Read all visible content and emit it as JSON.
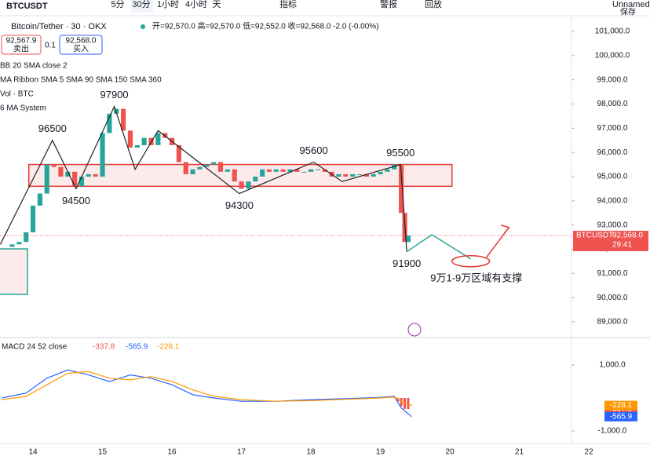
{
  "toolbar": {
    "symbol": "BTCUSDT",
    "intervals": [
      "5分",
      "30分",
      "1小时",
      "4小时",
      "天"
    ],
    "indicators": "指标",
    "alert": "警报",
    "replay": "回放",
    "layout": "Unnamed",
    "save": "保存"
  },
  "header": {
    "title": "Bitcoin/Tether · 30 · OKX",
    "ohlc": "开=92,570.0 高=92,570.0 低=92,552.0 收=92,568.0 -2.0 (-0.00%)",
    "sell_price": "92,567.9",
    "sell": "卖出",
    "spread": "0.1",
    "buy_price": "92,568.0",
    "buy": "买入",
    "studies": [
      "BB 20 SMA close 2",
      "MA Ribbon SMA 5 SMA 90 SMA 150 SMA 360",
      "Vol · BTC",
      "6 MA System"
    ]
  },
  "chart_data": [
    {
      "type": "candlestick",
      "xlim": [
        13.525,
        22.88
      ],
      "ylim": [
        88415,
        101584
      ],
      "yticks": [
        {
          "value": 101000,
          "label": "101,000.0"
        },
        {
          "value": 100000,
          "label": "100,000.0"
        },
        {
          "value": 99000,
          "label": "99,000.0"
        },
        {
          "value": 98000,
          "label": "98,000.0"
        },
        {
          "value": 97000,
          "label": "97,000.0"
        },
        {
          "value": 96000,
          "label": "96,000.0"
        },
        {
          "value": 95000,
          "label": "95,000.0"
        },
        {
          "value": 94000,
          "label": "94,000.0"
        },
        {
          "value": 93000,
          "label": "93,000.0"
        },
        {
          "value": 92000,
          "label": "92,000.0"
        },
        {
          "value": 91000,
          "label": "91,000.0"
        },
        {
          "value": 90000,
          "label": "90,000.0"
        },
        {
          "value": 89000,
          "label": "89,000.0"
        }
      ],
      "xticks": [
        14,
        15,
        16,
        17,
        18,
        19,
        20,
        21,
        22
      ],
      "x": [
        13.6,
        13.7,
        13.8,
        13.9,
        14.0,
        14.1,
        14.2,
        14.3,
        14.4,
        14.5,
        14.6,
        14.7,
        14.8,
        14.9,
        15.0,
        15.1,
        15.2,
        15.3,
        15.4,
        15.5,
        15.6,
        15.7,
        15.8,
        15.9,
        16.0,
        16.1,
        16.2,
        16.3,
        16.4,
        16.5,
        16.6,
        16.7,
        16.8,
        16.9,
        17.0,
        17.1,
        17.2,
        17.3,
        17.4,
        17.5,
        17.6,
        17.7,
        17.8,
        17.9,
        18.0,
        18.1,
        18.2,
        18.3,
        18.4,
        18.5,
        18.6,
        18.7,
        18.8,
        18.9,
        19.0,
        19.1,
        19.2,
        19.3,
        19.35,
        19.4
      ],
      "values": [
        92100,
        92200,
        92300,
        92700,
        93800,
        94300,
        95500,
        95400,
        95000,
        95200,
        94600,
        95000,
        95100,
        95000,
        96800,
        97600,
        97800,
        96900,
        96200,
        96300,
        96600,
        96300,
        96800,
        96600,
        96300,
        95600,
        95100,
        95300,
        95400,
        95500,
        95600,
        95200,
        95300,
        94800,
        94500,
        94800,
        95000,
        95300,
        95200,
        95300,
        95200,
        95300,
        95200,
        95200,
        95300,
        95300,
        95200,
        95000,
        95100,
        95000,
        95100,
        95100,
        95000,
        95100,
        95200,
        95300,
        95500,
        93500,
        92300,
        92568
      ],
      "up_color": "#26a69a",
      "down_color": "#ef5350",
      "last": {
        "value": 92568,
        "label": "92,568.0"
      },
      "symbol": "BTCUSDT",
      "countdown": "29:41",
      "zone": {
        "x": [
          13.94,
          20.03
        ],
        "values": [
          94600,
          95500
        ],
        "color": "#e53935"
      },
      "pattern": {
        "x": [
          13.53,
          14.28,
          14.62,
          15.17,
          15.47,
          15.8,
          16.97,
          18.04,
          18.45,
          19.29,
          19.38
        ],
        "values": [
          92200,
          96500,
          94500,
          97900,
          95300,
          96900,
          94300,
          95600,
          94800,
          95500,
          91900
        ],
        "color": "#222222"
      },
      "projection": {
        "x": [
          19.38,
          19.74,
          20.3
        ],
        "values": [
          91900,
          92600,
          91600
        ],
        "color": "#26a69a"
      },
      "arrow": {
        "x": [
          20.3,
          20.85
        ],
        "values": [
          91600,
          92900
        ],
        "color": "#e53935"
      },
      "annotations": [
        {
          "x": 14.28,
          "value": 96500,
          "position": "above"
        },
        {
          "x": 14.62,
          "value": 94500,
          "position": "below"
        },
        {
          "x": 15.17,
          "value": 97900,
          "position": "above"
        },
        {
          "x": 16.97,
          "value": 94300,
          "position": "below"
        },
        {
          "x": 18.04,
          "value": 95600,
          "position": "above"
        },
        {
          "x": 19.29,
          "value": 95500,
          "position": "above"
        },
        {
          "x": 19.38,
          "value": 91900,
          "position": "below"
        }
      ],
      "note": "9万1-9万区域有支撑"
    },
    {
      "type": "line",
      "title": "MACD 24 52 close",
      "xlim": [
        13.525,
        22.88
      ],
      "ylim": [
        -1381,
        1786
      ],
      "yticks": [
        {
          "value": 1000,
          "label": "1,000.0"
        },
        {
          "value": -1000,
          "label": "-1,000.0"
        }
      ],
      "series": [
        {
          "name": "MACD",
          "color": "#2962ff",
          "x": [
            13.55,
            13.9,
            14.2,
            14.5,
            14.8,
            15.1,
            15.4,
            15.7,
            16.0,
            16.3,
            16.6,
            17.0,
            17.5,
            18.0,
            18.5,
            19.0,
            19.2,
            19.3,
            19.45
          ],
          "values": [
            0,
            150,
            600,
            850,
            700,
            500,
            700,
            600,
            400,
            100,
            0,
            -100,
            -100,
            -50,
            -20,
            20,
            50,
            -300,
            -565.9
          ]
        },
        {
          "name": "Signal",
          "color": "#ff9800",
          "x": [
            13.55,
            13.9,
            14.2,
            14.5,
            14.8,
            15.1,
            15.4,
            15.7,
            16.0,
            16.3,
            16.6,
            17.0,
            17.5,
            18.0,
            18.5,
            19.0,
            19.2,
            19.3,
            19.45
          ],
          "values": [
            -50,
            50,
            400,
            750,
            800,
            600,
            550,
            650,
            500,
            250,
            50,
            -50,
            -100,
            -80,
            -40,
            0,
            30,
            -100,
            -228.1
          ]
        }
      ],
      "histogram": {
        "color": "#ef5350",
        "x": [
          19.2,
          19.25,
          19.3,
          19.35,
          19.4
        ],
        "values": [
          20,
          -100,
          -250,
          -330,
          -337.8
        ]
      }
    }
  ]
}
